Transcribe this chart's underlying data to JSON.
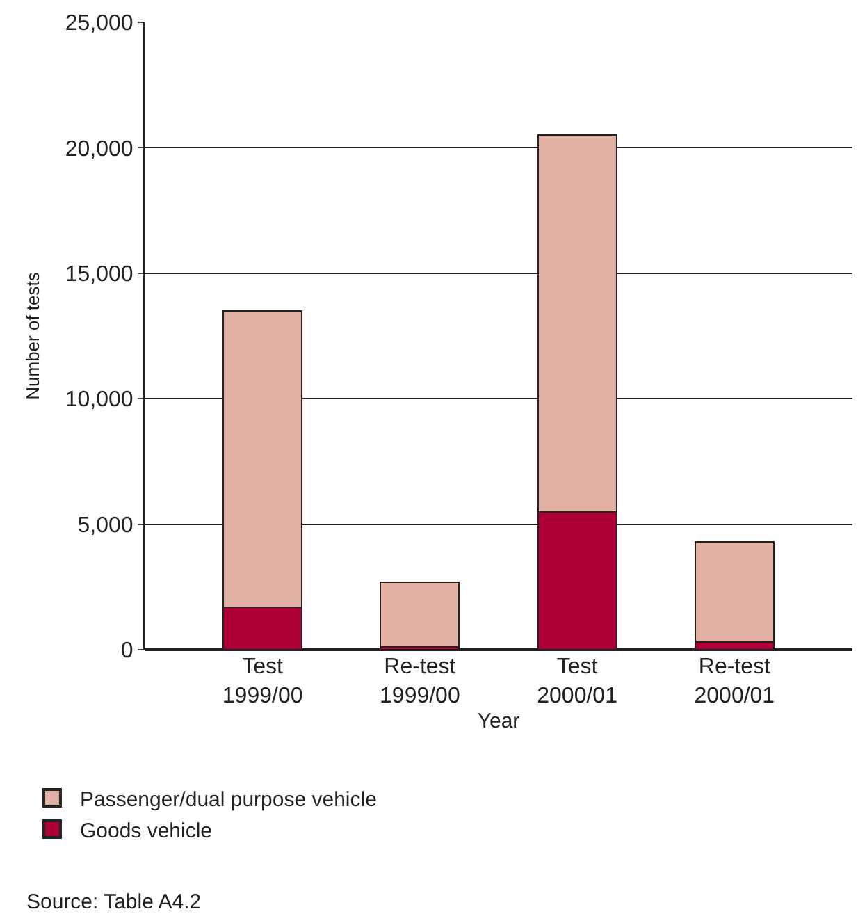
{
  "chart_data": {
    "type": "bar",
    "stacked": true,
    "categories": [
      "Test\n1999/00",
      "Re-test\n1999/00",
      "Test\n2000/01",
      "Re-test\n2000/01"
    ],
    "series": [
      {
        "name": "Goods vehicle",
        "color": "#ae0036",
        "values": [
          1700,
          100,
          5500,
          300
        ]
      },
      {
        "name": "Passenger/dual purpose vehicle",
        "color": "#e3b0a4",
        "values": [
          11800,
          2600,
          15000,
          4000
        ]
      }
    ],
    "xlabel": "Year",
    "ylabel": "Number of tests",
    "ylim": [
      0,
      25000
    ],
    "yticks": [
      {
        "value": 0,
        "label": "0"
      },
      {
        "value": 5000,
        "label": "5,000"
      },
      {
        "value": 10000,
        "label": "10,000"
      },
      {
        "value": 15000,
        "label": "15,000"
      },
      {
        "value": 20000,
        "label": "20,000"
      },
      {
        "value": 25000,
        "label": "25,000"
      }
    ],
    "grid": "y",
    "legend": "bottom",
    "annotations": [
      "Source: Table A4.2"
    ]
  }
}
